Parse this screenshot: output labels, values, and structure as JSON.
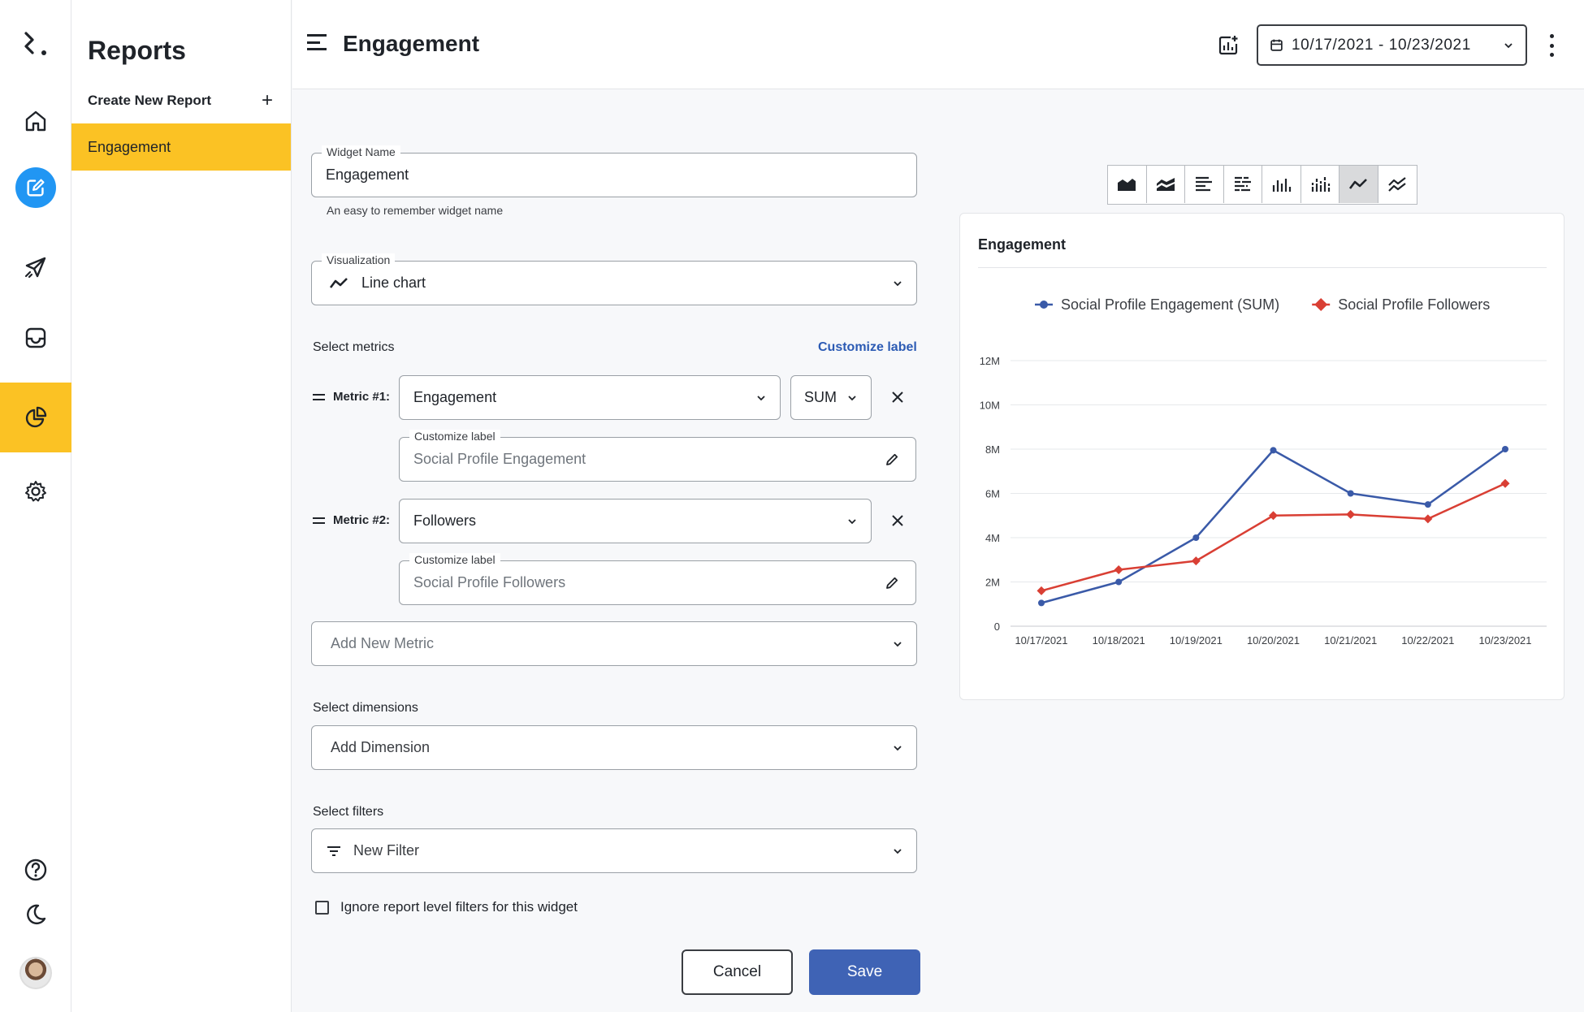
{
  "rail": {
    "items": [
      "logo",
      "home",
      "edit",
      "send",
      "inbox",
      "reports",
      "settings"
    ],
    "bottom": [
      "help",
      "dark-mode",
      "avatar"
    ],
    "accent": "#fbc224",
    "edit_color": "#2196f3"
  },
  "panel": {
    "title": "Reports",
    "create_label": "Create New Report",
    "create_icon": "+",
    "items": [
      "Engagement"
    ]
  },
  "header": {
    "title": "Engagement",
    "date_range": "10/17/2021 - 10/23/2021"
  },
  "form": {
    "widget_name": {
      "label": "Widget Name",
      "value": "Engagement",
      "helper": "An easy to remember widget name"
    },
    "visualization": {
      "label": "Visualization",
      "value": "Line chart"
    },
    "metrics_section": "Select metrics",
    "customize_label_link": "Customize label",
    "metrics": [
      {
        "label": "Metric #1:",
        "value": "Engagement",
        "agg": "SUM",
        "custom_label_title": "Customize label",
        "custom_label_value": "Social Profile Engagement"
      },
      {
        "label": "Metric #2:",
        "value": "Followers",
        "custom_label_title": "Customize label",
        "custom_label_value": "Social Profile Followers"
      }
    ],
    "add_metric_placeholder": "Add New Metric",
    "dimensions_section": "Select dimensions",
    "add_dimension": "Add Dimension",
    "filters_section": "Select filters",
    "new_filter": "New Filter",
    "ignore_filters_label": "Ignore report level filters for this widget",
    "cancel_label": "Cancel",
    "save_label": "Save",
    "save_color": "#3f63b5"
  },
  "viz_toolbar": {
    "options": [
      "area-chart",
      "stacked-area-chart",
      "horizontal-bar-chart",
      "stacked-horizontal-bar-chart",
      "bar-chart",
      "stacked-bar-chart",
      "line-chart",
      "multi-line-chart"
    ],
    "active": "line-chart"
  },
  "chart_card": {
    "title": "Engagement"
  },
  "chart_data": {
    "type": "line",
    "title": "Engagement",
    "x": [
      "10/17/2021",
      "10/18/2021",
      "10/19/2021",
      "10/20/2021",
      "10/21/2021",
      "10/22/2021",
      "10/23/2021"
    ],
    "yticks": [
      "0",
      "2M",
      "4M",
      "6M",
      "8M",
      "10M",
      "12M"
    ],
    "ylim": [
      0,
      12000000
    ],
    "grid": true,
    "legend": "top",
    "series": [
      {
        "name": "Social Profile Engagement (SUM)",
        "color": "#3a5aa8",
        "marker": "circle",
        "values": [
          1050000,
          2000000,
          4000000,
          7950000,
          6000000,
          5500000,
          8000000
        ]
      },
      {
        "name": "Social Profile Followers",
        "color": "#d93f34",
        "marker": "diamond",
        "values": [
          1600000,
          2550000,
          2950000,
          5000000,
          5050000,
          4850000,
          6450000
        ]
      }
    ]
  }
}
